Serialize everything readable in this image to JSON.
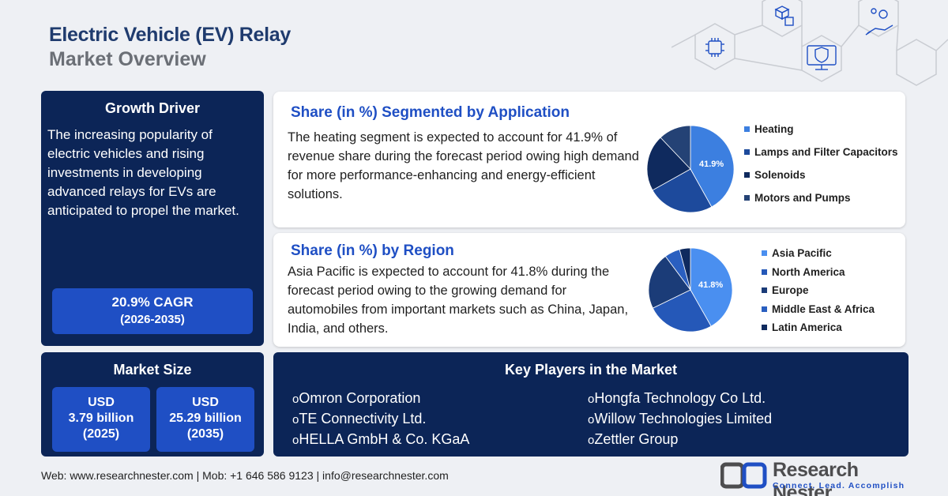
{
  "header": {
    "title_line1": "Electric Vehicle (EV) Relay",
    "title_line2": "Market Overview"
  },
  "growth_driver": {
    "title": "Growth Driver",
    "description": "The increasing popularity of electric vehicles and rising investments in developing advanced relays for EVs are anticipated to propel the market.",
    "cagr": "20.9% CAGR",
    "period": "(2026-2035)"
  },
  "market_size": {
    "title": "Market Size",
    "value_2025": {
      "currency": "USD",
      "amount": "3.79 billion",
      "year": "(2025)"
    },
    "value_2035": {
      "currency": "USD",
      "amount": "25.29 billion",
      "year": "(2035)"
    }
  },
  "application_section": {
    "title": "Share (in %) Segmented by Application",
    "text": "The heating segment is expected to account for 41.9% of revenue share during the forecast period owing high demand for more performance-enhancing and energy-efficient solutions.",
    "pie_label": "41.9%"
  },
  "region_section": {
    "title": "Share (in %) by Region",
    "text": "Asia Pacific is expected to account for 41.8% during the forecast period owing to the growing demand for automobiles from important markets such as China, Japan, India, and others.",
    "pie_label": "41.8%"
  },
  "chart_data": [
    {
      "type": "pie",
      "title": "Share (in %) Segmented by Application",
      "categories": [
        "Heating",
        "Lamps and Filter Capacitors",
        "Solenoids",
        "Motors and Pumps"
      ],
      "values": [
        41.9,
        25.0,
        21.0,
        12.1
      ],
      "colors": [
        "#3c7fe0",
        "#1d4a9c",
        "#0f2a5e",
        "#244275"
      ]
    },
    {
      "type": "pie",
      "title": "Share (in %) by Region",
      "categories": [
        "Asia Pacific",
        "North America",
        "Europe",
        "Middle East & Africa",
        "Latin America"
      ],
      "values": [
        41.8,
        26.0,
        22.0,
        6.0,
        4.2
      ],
      "colors": [
        "#4a8ff0",
        "#2558b8",
        "#1b3c78",
        "#2a5fc0",
        "#0f2a5e"
      ]
    }
  ],
  "key_players": {
    "title": "Key Players in the Market",
    "bullet": "o",
    "left": [
      "Omron Corporation",
      "TE Connectivity Ltd.",
      "HELLA GmbH & Co. KGaA"
    ],
    "right": [
      "Hongfa Technology Co Ltd.",
      "Willow Technologies Limited",
      "Zettler Group"
    ]
  },
  "footer": {
    "contact": "Web: www.researchnester.com | Mob: +1 646 586 9123 | info@researchnester.com",
    "brand": "Research Nester",
    "tagline": "Connect. Lead. Accomplish"
  },
  "icons": [
    "ai-chip-icon",
    "cubes-icon",
    "gear-hand-icon",
    "shield-monitor-icon",
    "logo-mark-icon"
  ],
  "colors": {
    "navy": "#0c2557",
    "accent_blue": "#1f4fc4",
    "title_blue": "#1f3b6e",
    "subtitle_gray": "#6b6f76"
  }
}
